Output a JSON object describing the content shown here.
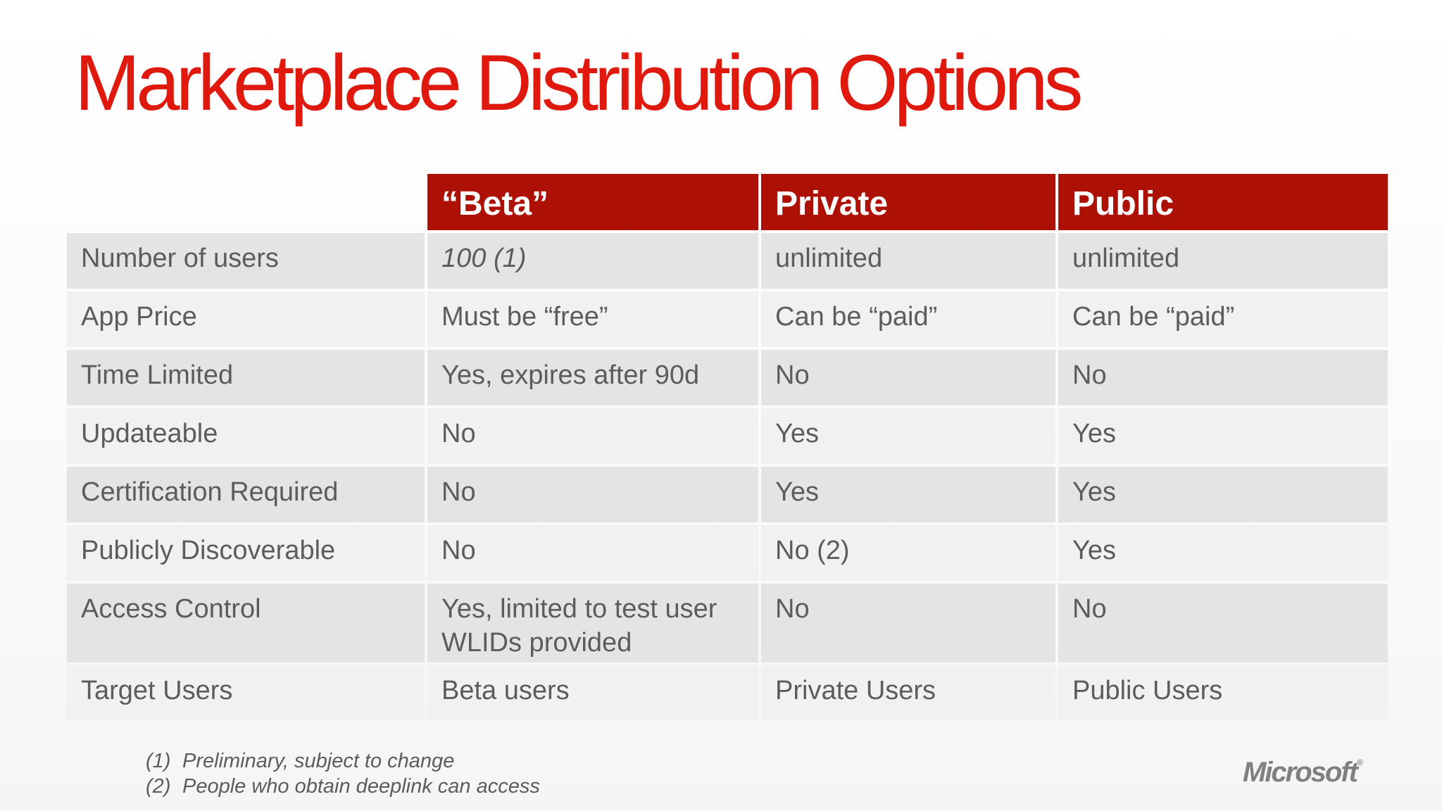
{
  "slide": {
    "title": "Marketplace Distribution Options"
  },
  "table": {
    "columns": [
      "",
      "“Beta”",
      "Private",
      "Public"
    ],
    "rows": [
      {
        "label": "Number of users",
        "beta": "100 (1)",
        "private": "unlimited",
        "public": "unlimited"
      },
      {
        "label": "App Price",
        "beta": "Must be “free”",
        "private": "Can be “paid”",
        "public": "Can be “paid”"
      },
      {
        "label": "Time Limited",
        "beta": "Yes, expires after 90d",
        "private": "No",
        "public": "No"
      },
      {
        "label": "Updateable",
        "beta": "No",
        "private": "Yes",
        "public": "Yes"
      },
      {
        "label": "Certification Required",
        "beta": "No",
        "private": "Yes",
        "public": "Yes"
      },
      {
        "label": "Publicly Discoverable",
        "beta": "No",
        "private": "No (2)",
        "public": "Yes"
      },
      {
        "label": "Access Control",
        "beta": "Yes, limited to test user WLIDs provided",
        "private": "No",
        "public": "No"
      },
      {
        "label": "Target Users",
        "beta": "Beta users",
        "private": "Private Users",
        "public": "Public Users"
      }
    ]
  },
  "footnotes": [
    {
      "num": "(1)",
      "text": "Preliminary, subject to change"
    },
    {
      "num": "(2)",
      "text": "People who obtain deeplink can access"
    }
  ],
  "logo": {
    "text": "Microsoft",
    "mark": "®"
  },
  "colors": {
    "title": "#e0190f",
    "header_bg": "#ad1106",
    "row_odd": "#e4e4e7",
    "row_even": "#f1f1f3",
    "body_text": "#5c5c5c"
  }
}
